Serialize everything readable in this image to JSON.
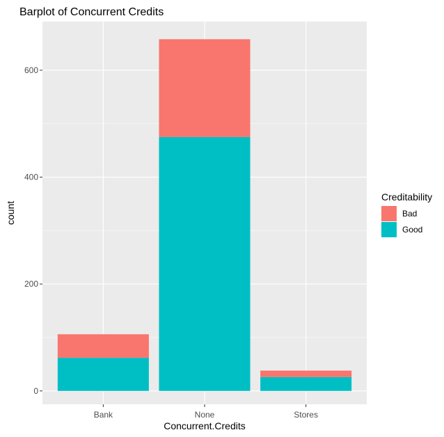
{
  "chart_data": {
    "type": "bar",
    "stacked": true,
    "title": "Barplot of Concurrent Credits",
    "xlabel": "Concurrent.Credits",
    "ylabel": "count",
    "categories": [
      "Bank",
      "None",
      "Stores"
    ],
    "series": [
      {
        "name": "Good",
        "values": [
          62,
          475,
          26
        ],
        "color": "#00BFC4"
      },
      {
        "name": "Bad",
        "values": [
          44,
          183,
          12
        ],
        "color": "#F8766D"
      }
    ],
    "stack_order_bottom_to_top": [
      "Good",
      "Bad"
    ],
    "ylim": [
      -25,
      691
    ],
    "y_ticks": [
      "0",
      "200",
      "400",
      "600"
    ],
    "y_tick_values": [
      0,
      200,
      400,
      600
    ],
    "legend": {
      "title": "Creditability",
      "position": "right",
      "entries": [
        {
          "label": "Bad",
          "color": "#F8766D"
        },
        {
          "label": "Good",
          "color": "#00BFC4"
        }
      ]
    },
    "grid": true,
    "panel_background": "#EBEBEB",
    "grid_color": "#FFFFFF"
  }
}
